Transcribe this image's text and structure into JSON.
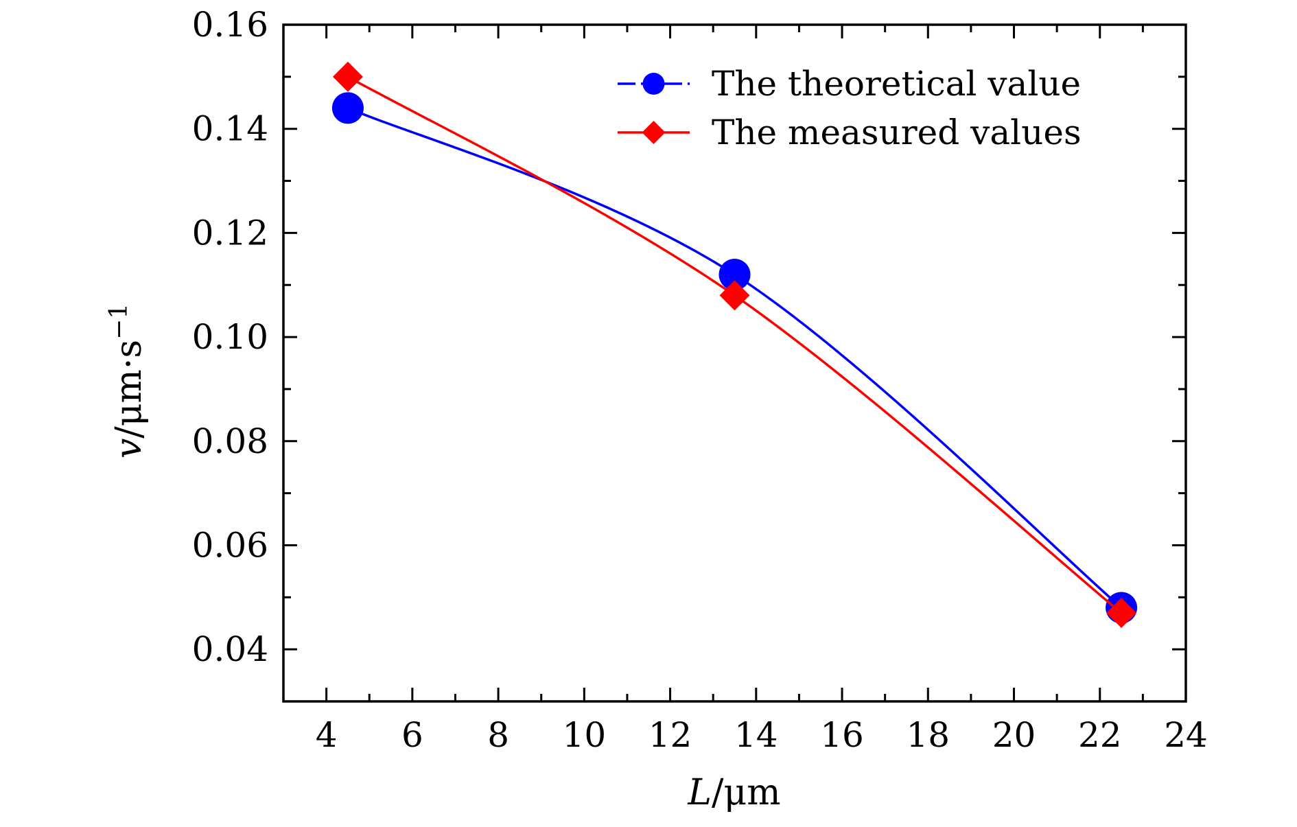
{
  "chart_data": {
    "type": "line",
    "xlabel": {
      "symbol": "L",
      "unit": "/μm"
    },
    "ylabel": {
      "symbol": "v",
      "unit": "/μm·s",
      "exponent": "−1"
    },
    "xlim": [
      3,
      24
    ],
    "ylim": [
      0.03,
      0.16
    ],
    "xticks": [
      "4",
      "6",
      "8",
      "10",
      "12",
      "14",
      "16",
      "18",
      "20",
      "22",
      "24"
    ],
    "yticks": [
      "0.04",
      "0.06",
      "0.08",
      "0.10",
      "0.12",
      "0.14",
      "0.16"
    ],
    "grid": false,
    "legend_position": "top-right",
    "series": [
      {
        "name": "The theoretical value",
        "color": "#0000ff",
        "marker": "circle",
        "x": [
          4.5,
          13.5,
          22.5
        ],
        "y": [
          0.144,
          0.112,
          0.048
        ]
      },
      {
        "name": "The measured values",
        "color": "#ff0000",
        "marker": "diamond",
        "x": [
          4.5,
          13.5,
          22.5
        ],
        "y": [
          0.15,
          0.108,
          0.047
        ]
      }
    ]
  }
}
